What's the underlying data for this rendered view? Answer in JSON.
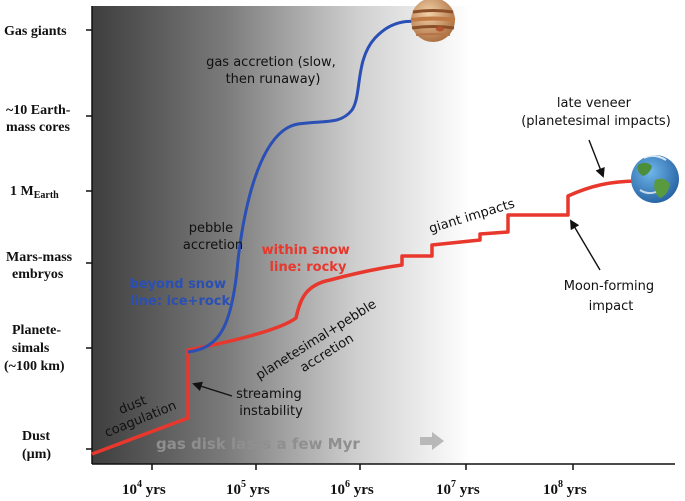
{
  "y_levels": [
    {
      "lines": [
        "Gas giants"
      ]
    },
    {
      "lines": [
        "~10 Earth-",
        "mass cores"
      ]
    },
    {
      "lines": [
        "1 M",
        "Earth"
      ]
    },
    {
      "lines": [
        "Mars-mass",
        "embryos"
      ]
    },
    {
      "lines": [
        "Planete-",
        "simals",
        "(~100 km)"
      ]
    },
    {
      "lines": [
        "Dust",
        "(µm)"
      ]
    }
  ],
  "x_ticks": [
    {
      "base": "10",
      "exp": "4",
      "suffix": " yrs"
    },
    {
      "base": "10",
      "exp": "5",
      "suffix": " yrs"
    },
    {
      "base": "10",
      "exp": "6",
      "suffix": " yrs"
    },
    {
      "base": "10",
      "exp": "7",
      "suffix": " yrs"
    },
    {
      "base": "10",
      "exp": "8",
      "suffix": " yrs"
    }
  ],
  "annotations": {
    "gas_accretion": [
      "gas accretion (slow,",
      "then runaway)"
    ],
    "pebble_accretion": [
      "pebble",
      "accretion"
    ],
    "beyond_snow": [
      "beyond snow",
      "line: ice+rock"
    ],
    "within_snow": [
      "within snow",
      "line: rocky"
    ],
    "planetesimal_pebble": [
      "planetesimal+pebble",
      "accretion"
    ],
    "dust_coagulation": [
      "dust",
      "coagulation"
    ],
    "streaming": [
      "streaming",
      "instability"
    ],
    "giant_impacts": "giant impacts",
    "late_veneer": [
      "late veneer",
      "(planetesimal impacts)"
    ],
    "moon_forming": [
      "Moon-forming",
      "impact"
    ],
    "gas_disk": "gas disk lasts a few Myr"
  },
  "colors": {
    "blue_track": "#2a4fb5",
    "red_track": "#e8372c",
    "disk_gradient_dark": "#4a4a4a",
    "disk_gradient_light": "#ffffff"
  },
  "icons": [
    "jupiter-planet-icon",
    "earth-planet-icon"
  ]
}
